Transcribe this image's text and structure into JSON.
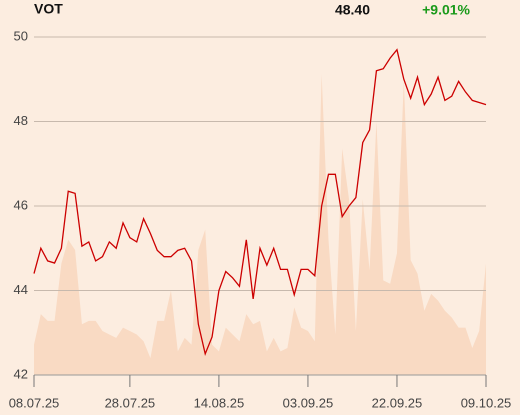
{
  "header": {
    "ticker": "VOT",
    "price": "48.40",
    "change": "+9.01%"
  },
  "chart_data": {
    "type": "line",
    "categories": [
      "08.07.25",
      null,
      null,
      null,
      null,
      null,
      null,
      null,
      null,
      null,
      null,
      null,
      null,
      null,
      "28.07.25",
      null,
      null,
      null,
      null,
      null,
      null,
      null,
      null,
      null,
      null,
      null,
      null,
      "14.08.25",
      null,
      null,
      null,
      null,
      null,
      null,
      null,
      null,
      null,
      null,
      null,
      null,
      "03.09.25",
      null,
      null,
      null,
      null,
      null,
      null,
      null,
      null,
      null,
      null,
      null,
      null,
      "22.09.25",
      null,
      null,
      null,
      null,
      null,
      null,
      null,
      null,
      null,
      null,
      null,
      null,
      "09.10.25"
    ],
    "series": [
      {
        "color": "#cc0000",
        "values": [
          44.4,
          45.0,
          44.7,
          44.65,
          45.0,
          46.35,
          46.3,
          45.05,
          45.15,
          44.7,
          44.8,
          45.15,
          45.0,
          45.6,
          45.25,
          45.15,
          45.7,
          45.35,
          44.95,
          44.8,
          44.8,
          44.95,
          45.0,
          44.7,
          43.2,
          42.5,
          42.9,
          44.0,
          44.45,
          44.3,
          44.1,
          45.2,
          43.8,
          45.0,
          44.6,
          45.0,
          44.5,
          44.5,
          43.9,
          44.5,
          44.5,
          44.35,
          46.0,
          46.75,
          46.75,
          45.75,
          46.0,
          46.2,
          47.5,
          47.8,
          49.2,
          49.25,
          49.5,
          49.7,
          49.0,
          48.55,
          49.05,
          48.4,
          48.65,
          49.05,
          48.5,
          48.6,
          48.95,
          48.7,
          48.5,
          48.45,
          48.4
        ]
      },
      {
        "color": "#f9dac3",
        "axis": "y2",
        "values": [
          9,
          18,
          16,
          16,
          33,
          40,
          37,
          15,
          16,
          16,
          13,
          12,
          11,
          14,
          13,
          12,
          10,
          5,
          16,
          16,
          25,
          7,
          11,
          9,
          37,
          43,
          9,
          7,
          14,
          12,
          10,
          18,
          15,
          16,
          7,
          11,
          7,
          8,
          20,
          14,
          13,
          10,
          89,
          40,
          12,
          67,
          52,
          13,
          52,
          31,
          75,
          28,
          27,
          36,
          87,
          34,
          30,
          19,
          24,
          22,
          19,
          17,
          14,
          14,
          8,
          13,
          33
        ]
      }
    ],
    "ylim": [
      42,
      50
    ],
    "yticks": [
      42,
      44,
      46,
      48,
      50
    ],
    "y2lim": [
      0,
      100
    ],
    "grid": true
  }
}
